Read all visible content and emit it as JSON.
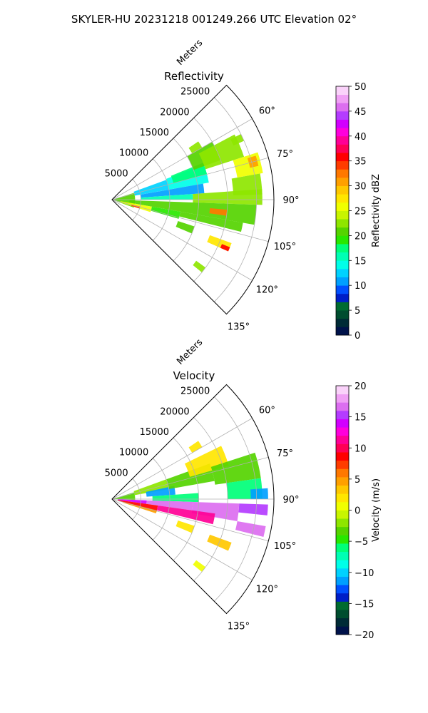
{
  "figure": {
    "title": "SKYLER-HU  20231218  001249.266 UTC Elevation 02°"
  },
  "chart_data": [
    {
      "type": "heatmap",
      "projection": "polar-sector",
      "title": "Reflectivity",
      "radial_label": "Meters",
      "radial_ticks": [
        5000,
        10000,
        15000,
        20000,
        25000
      ],
      "radial_tick_labels": [
        "5000",
        "10000",
        "15000",
        "20000",
        "25000"
      ],
      "rmax": 28000,
      "angle_range_deg": [
        45,
        135
      ],
      "angle_ticks": [
        60,
        75,
        90,
        105,
        120,
        135
      ],
      "angle_tick_labels": [
        "60°",
        "75°",
        "90°",
        "105°",
        "120°",
        "135°"
      ],
      "grid": true,
      "colorbar": {
        "label": "Reflectivity dBZ",
        "vmin": 0,
        "vmax": 50,
        "ticks": [
          0,
          5,
          10,
          15,
          20,
          25,
          30,
          35,
          40,
          45,
          50
        ],
        "tick_labels": [
          "0",
          "5",
          "10",
          "15",
          "20",
          "25",
          "30",
          "35",
          "40",
          "45",
          "50"
        ]
      },
      "cells": [
        {
          "az": [
            73,
            110
          ],
          "r": [
            0,
            4000
          ],
          "value": 20
        },
        {
          "az": [
            70,
            80
          ],
          "r": [
            4000,
            10000
          ],
          "value": 12
        },
        {
          "az": [
            69,
            80
          ],
          "r": [
            10000,
            17000
          ],
          "value": 14
        },
        {
          "az": [
            80,
            86
          ],
          "r": [
            5000,
            16000
          ],
          "value": 11
        },
        {
          "az": [
            86,
            90
          ],
          "r": [
            5000,
            14000
          ],
          "value": 16
        },
        {
          "az": [
            86,
            92
          ],
          "r": [
            14000,
            26000
          ],
          "value": 22
        },
        {
          "az": [
            92,
            100
          ],
          "r": [
            3000,
            25000
          ],
          "value": 20
        },
        {
          "az": [
            100,
            108
          ],
          "r": [
            1500,
            7000
          ],
          "value": 26
        },
        {
          "az": [
            104,
            108
          ],
          "r": [
            3500,
            5000
          ],
          "value": 34
        },
        {
          "az": [
            100,
            106
          ],
          "r": [
            7000,
            12000
          ],
          "value": 19
        },
        {
          "az": [
            100,
            104
          ],
          "r": [
            12000,
            23000
          ],
          "value": 21
        },
        {
          "az": [
            95,
            98
          ],
          "r": [
            17000,
            20000
          ],
          "value": 33
        },
        {
          "az": [
            68,
            75
          ],
          "r": [
            11000,
            17000
          ],
          "value": 17
        },
        {
          "az": [
            60,
            70
          ],
          "r": [
            15000,
            20000
          ],
          "value": 21
        },
        {
          "az": [
            62,
            72
          ],
          "r": [
            17000,
            24000
          ],
          "value": 23
        },
        {
          "az": [
            72,
            80
          ],
          "r": [
            22000,
            26500
          ],
          "value": 25
        },
        {
          "az": [
            73,
            77
          ],
          "r": [
            24500,
            26000
          ],
          "value": 30
        },
        {
          "az": [
            80,
            88
          ],
          "r": [
            21000,
            26000
          ],
          "value": 23
        },
        {
          "az": [
            108,
            113
          ],
          "r": [
            12000,
            15000
          ],
          "value": 20
        },
        {
          "az": [
            110,
            114
          ],
          "r": [
            18000,
            22000
          ],
          "value": 27
        },
        {
          "az": [
            112,
            114
          ],
          "r": [
            20500,
            22000
          ],
          "value": 35
        },
        {
          "az": [
            56,
            60
          ],
          "r": [
            16000,
            18000
          ],
          "value": 23
        },
        {
          "az": [
            63,
            66
          ],
          "r": [
            23000,
            25000
          ],
          "value": 22
        },
        {
          "az": [
            126,
            129
          ],
          "r": [
            18000,
            20000
          ],
          "value": 23
        }
      ]
    },
    {
      "type": "heatmap",
      "projection": "polar-sector",
      "title": "Velocity",
      "radial_label": "Meters",
      "radial_ticks": [
        5000,
        10000,
        15000,
        20000,
        25000
      ],
      "radial_tick_labels": [
        "5000",
        "10000",
        "15000",
        "20000",
        "25000"
      ],
      "rmax": 28000,
      "angle_range_deg": [
        45,
        135
      ],
      "angle_ticks": [
        60,
        75,
        90,
        105,
        120,
        135
      ],
      "angle_tick_labels": [
        "60°",
        "75°",
        "90°",
        "105°",
        "120°",
        "135°"
      ],
      "grid": true,
      "colorbar": {
        "label": "Velocity (m/s)",
        "vmin": -20,
        "vmax": 20,
        "ticks": [
          -20,
          -15,
          -10,
          -5,
          0,
          5,
          10,
          15,
          20
        ],
        "tick_labels": [
          "−20",
          "−15",
          "−10",
          "−5",
          "0",
          "5",
          "10",
          "15",
          "20"
        ]
      },
      "cells": [
        {
          "az": [
            73,
            92
          ],
          "r": [
            0,
            4000
          ],
          "value": -4
        },
        {
          "az": [
            70,
            80
          ],
          "r": [
            4000,
            10000
          ],
          "value": -2
        },
        {
          "az": [
            78,
            86
          ],
          "r": [
            6000,
            11000
          ],
          "value": -12
        },
        {
          "az": [
            86,
            92
          ],
          "r": [
            7000,
            15000
          ],
          "value": -6
        },
        {
          "az": [
            70,
            80
          ],
          "r": [
            10000,
            18000
          ],
          "value": -4
        },
        {
          "az": [
            64,
            74
          ],
          "r": [
            14000,
            21000
          ],
          "value": 2
        },
        {
          "az": [
            72,
            82
          ],
          "r": [
            18000,
            26000
          ],
          "value": -4
        },
        {
          "az": [
            82,
            90
          ],
          "r": [
            20000,
            26000
          ],
          "value": -6
        },
        {
          "az": [
            86,
            90
          ],
          "r": [
            24000,
            27000
          ],
          "value": -12
        },
        {
          "az": [
            92,
            98
          ],
          "r": [
            1000,
            6000
          ],
          "value": 14
        },
        {
          "az": [
            92,
            98
          ],
          "r": [
            6000,
            14000
          ],
          "value": 16
        },
        {
          "az": [
            92,
            100
          ],
          "r": [
            14000,
            22000
          ],
          "value": 17
        },
        {
          "az": [
            92,
            96
          ],
          "r": [
            22000,
            27000
          ],
          "value": 15
        },
        {
          "az": [
            98,
            106
          ],
          "r": [
            1000,
            8000
          ],
          "value": 9
        },
        {
          "az": [
            98,
            104
          ],
          "r": [
            8000,
            18000
          ],
          "value": 11
        },
        {
          "az": [
            104,
            108
          ],
          "r": [
            2000,
            8000
          ],
          "value": 4
        },
        {
          "az": [
            100,
            104
          ],
          "r": [
            22000,
            27000
          ],
          "value": 17
        },
        {
          "az": [
            108,
            113
          ],
          "r": [
            12000,
            15000
          ],
          "value": 2
        },
        {
          "az": [
            110,
            114
          ],
          "r": [
            18000,
            22000
          ],
          "value": 3
        },
        {
          "az": [
            56,
            60
          ],
          "r": [
            16000,
            18000
          ],
          "value": 2
        },
        {
          "az": [
            126,
            129
          ],
          "r": [
            18000,
            20000
          ],
          "value": 1
        }
      ]
    }
  ]
}
